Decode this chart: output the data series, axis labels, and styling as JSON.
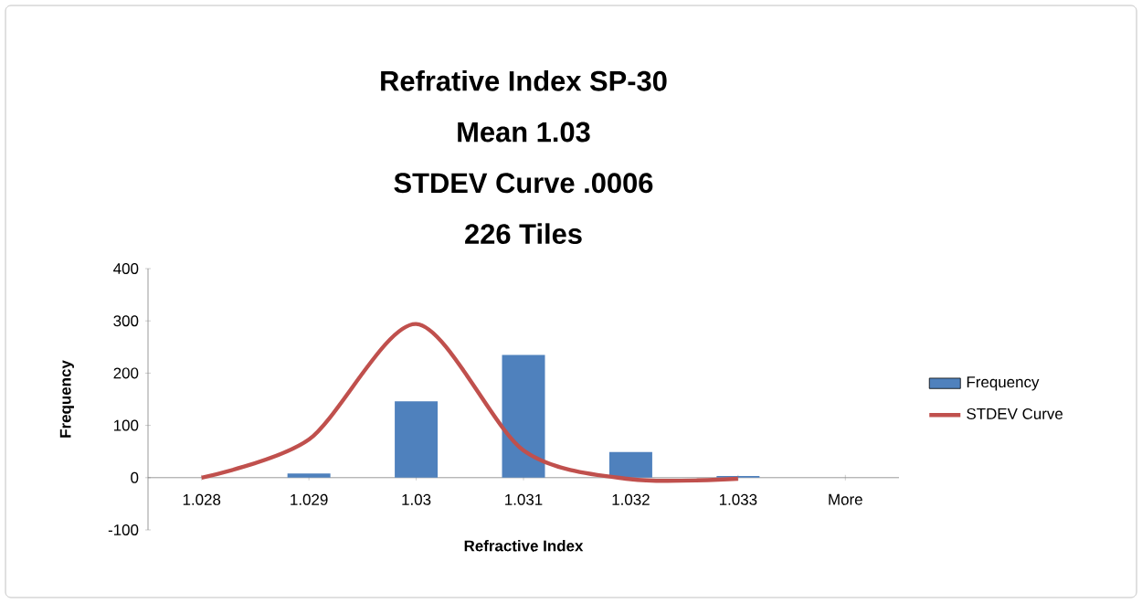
{
  "chart_data": {
    "type": "bar",
    "title": "Refrative Index SP-30",
    "subtitle": "Mean 1.03",
    "annotations": [
      "STDEV Curve .0006",
      "226 Tiles"
    ],
    "xlabel": "Refractive Index",
    "ylabel": "Frequency",
    "categories": [
      "1.028",
      "1.029",
      "1.03",
      "1.031",
      "1.032",
      "1.033",
      "More"
    ],
    "series": [
      {
        "name": "Frequency",
        "color": "#4f81bd",
        "values": [
          0,
          8,
          146,
          235,
          49,
          3,
          0
        ]
      },
      {
        "name": "STDEV Curve",
        "type": "line",
        "color": "#c0504d",
        "values": [
          0,
          73,
          294,
          52,
          -3,
          -2,
          null
        ]
      }
    ],
    "ylim": [
      -100,
      400
    ],
    "yticks": [
      -100,
      0,
      100,
      200,
      300,
      400
    ],
    "grid": false,
    "legend": "right"
  }
}
